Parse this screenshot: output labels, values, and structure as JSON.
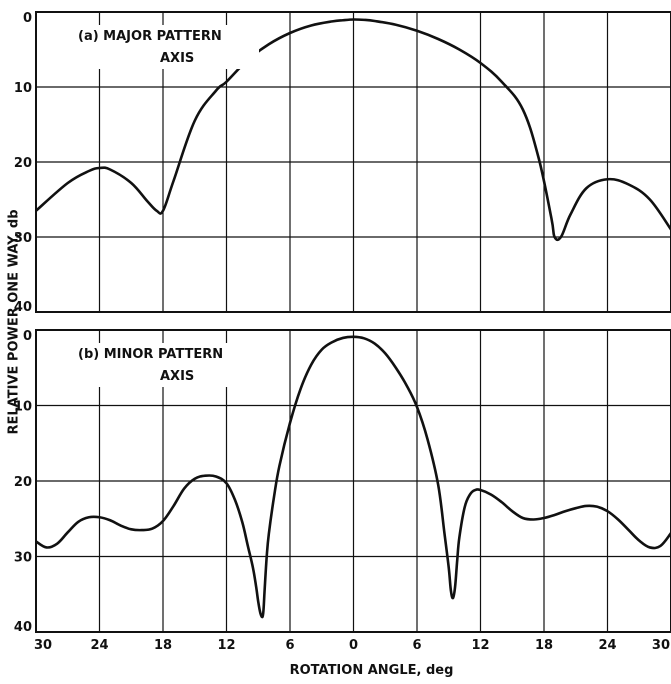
{
  "chart_data": [
    {
      "type": "line",
      "panel": "a",
      "annotation": [
        "(a) MAJOR PATTERN",
        "AXIS"
      ],
      "x_ticks": [
        "",
        "",
        "",
        "",
        "",
        "",
        "",
        "",
        "",
        "",
        ""
      ],
      "y_ticks": [
        "0",
        "10",
        "20",
        "30",
        "40"
      ],
      "ylim": [
        0,
        40
      ],
      "y_inverted": true,
      "xlim": [
        -30,
        30
      ],
      "grid": true,
      "series": [
        {
          "x": [
            -30,
            -27,
            -25,
            -24,
            -23,
            -21,
            -19.5,
            -18.6,
            -18,
            -17,
            -15,
            -13,
            -12,
            -10,
            -8,
            -6,
            -4,
            -2,
            -1,
            0,
            1,
            2,
            4,
            6,
            8,
            10,
            12,
            14,
            16,
            17.5,
            18.7,
            19,
            19.6,
            20.5,
            22,
            24,
            26,
            28,
            30
          ],
          "y": [
            26.5,
            22.8,
            21.2,
            20.8,
            21.0,
            22.8,
            25.2,
            26.5,
            26.5,
            22.5,
            14.5,
            10.5,
            9.3,
            6.4,
            4.3,
            2.8,
            1.8,
            1.25,
            1.1,
            1.0,
            1.05,
            1.2,
            1.7,
            2.5,
            3.6,
            5.0,
            6.8,
            9.3,
            13.0,
            19.5,
            27.5,
            30.0,
            30.0,
            27.0,
            23.5,
            22.3,
            23.0,
            25.0,
            29.0
          ]
        }
      ]
    },
    {
      "type": "line",
      "panel": "b",
      "annotation": [
        "(b) MINOR PATTERN",
        "AXIS"
      ],
      "x_ticks": [
        "30",
        "24",
        "18",
        "12",
        "6",
        "0",
        "6",
        "12",
        "18",
        "24",
        "30"
      ],
      "y_ticks": [
        "0",
        "10",
        "20",
        "30",
        "40"
      ],
      "ylim": [
        0,
        40
      ],
      "y_inverted": true,
      "xlim": [
        -30,
        30
      ],
      "grid": true,
      "xlabel": "ROTATION ANGLE, deg",
      "series": [
        {
          "x": [
            -30,
            -29,
            -28,
            -27,
            -26,
            -25,
            -24,
            -23,
            -22,
            -21,
            -20,
            -19,
            -18,
            -17,
            -16,
            -15,
            -14,
            -13,
            -12,
            -11.2,
            -10.5,
            -10,
            -9.5,
            -9.2,
            -9.0,
            -8.8,
            -8.6,
            -8.5,
            -8.4,
            -8.2,
            -8.0,
            -7.5,
            -7,
            -6,
            -5,
            -4,
            -3,
            -2,
            -1,
            0,
            1,
            2,
            3,
            4,
            5,
            6,
            7,
            8,
            8.6,
            9.0,
            9.2,
            9.4,
            9.6,
            9.8,
            10,
            10.5,
            11,
            11.5,
            12,
            13,
            14,
            15,
            16,
            17,
            18,
            19,
            20,
            21,
            22,
            23,
            24,
            25,
            26,
            27,
            28,
            29,
            30
          ],
          "y": [
            28.0,
            28.8,
            28.3,
            26.8,
            25.4,
            24.8,
            24.8,
            25.2,
            25.9,
            26.4,
            26.5,
            26.3,
            25.3,
            23.3,
            21.0,
            19.7,
            19.3,
            19.4,
            20.3,
            22.5,
            25.5,
            28.5,
            31.5,
            34.0,
            36.0,
            37.5,
            38.0,
            37.0,
            34.5,
            30.0,
            27.0,
            22.0,
            18.0,
            12.3,
            7.8,
            4.6,
            2.6,
            1.6,
            1.05,
            0.9,
            1.1,
            1.8,
            3.1,
            5.0,
            7.3,
            10.2,
            14.5,
            20.5,
            27.0,
            31.5,
            34.5,
            35.5,
            34.0,
            30.5,
            27.5,
            23.5,
            21.8,
            21.2,
            21.2,
            21.8,
            22.8,
            24.0,
            24.9,
            25.1,
            24.9,
            24.5,
            24.0,
            23.6,
            23.3,
            23.4,
            24.0,
            25.1,
            26.5,
            27.9,
            28.8,
            28.6,
            26.9
          ]
        }
      ]
    }
  ],
  "shared_ylabel": "RELATIVE POWER ONE WAY, db"
}
